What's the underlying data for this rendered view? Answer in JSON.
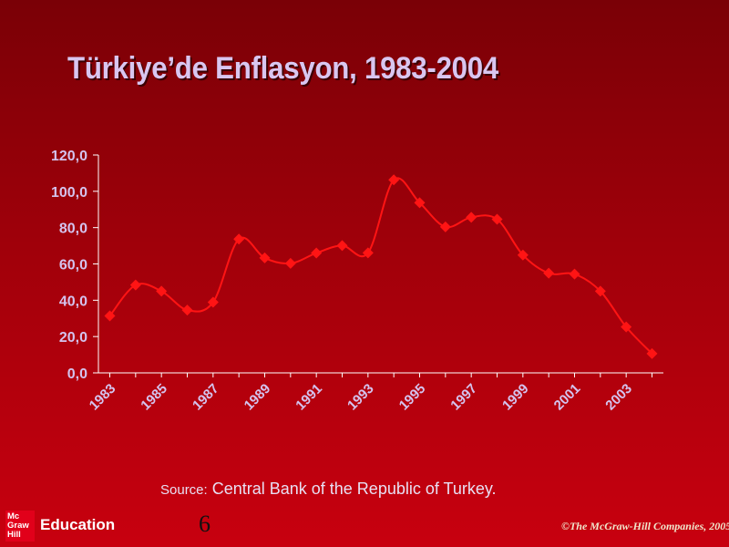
{
  "slide": {
    "title": "Türkiye’de Enflasyon, 1983-2004",
    "source_label": "Source:",
    "source_text": "Central Bank of the Republic of Turkey.",
    "page_number": "6",
    "copyright": "©The McGraw-Hill Companies, 2005"
  },
  "logo": {
    "box_lines": [
      "Mc",
      "Graw",
      "Hill"
    ],
    "text": "Education",
    "color": "#e1001a"
  },
  "colors": {
    "line": "#ff1414",
    "axis": "#ffffff",
    "tick_label": "#d4c3ee",
    "title": "#d9c6f0"
  },
  "chart_data": {
    "type": "line",
    "title": "",
    "xlabel": "",
    "ylabel": "",
    "ylim": [
      0,
      120
    ],
    "y_ticks": [
      "0,0",
      "20,0",
      "40,0",
      "60,0",
      "80,0",
      "100,0",
      "120,0"
    ],
    "x_tick_labels": [
      "1983",
      "1985",
      "1987",
      "1989",
      "1991",
      "1993",
      "1995",
      "1997",
      "1999",
      "2001",
      "2003"
    ],
    "x": [
      1983,
      1984,
      1985,
      1986,
      1987,
      1988,
      1989,
      1990,
      1991,
      1992,
      1993,
      1994,
      1995,
      1996,
      1997,
      1998,
      1999,
      2000,
      2001,
      2002,
      2003,
      2004
    ],
    "series": [
      {
        "values": [
          31.4,
          48.4,
          45.0,
          34.6,
          38.9,
          73.7,
          63.3,
          60.3,
          66.0,
          70.1,
          66.1,
          106.3,
          93.7,
          80.4,
          85.7,
          84.6,
          64.9,
          54.9,
          54.4,
          45.0,
          25.3,
          10.6
        ]
      }
    ],
    "grid": false,
    "legend": "none",
    "marker": "diamond"
  }
}
